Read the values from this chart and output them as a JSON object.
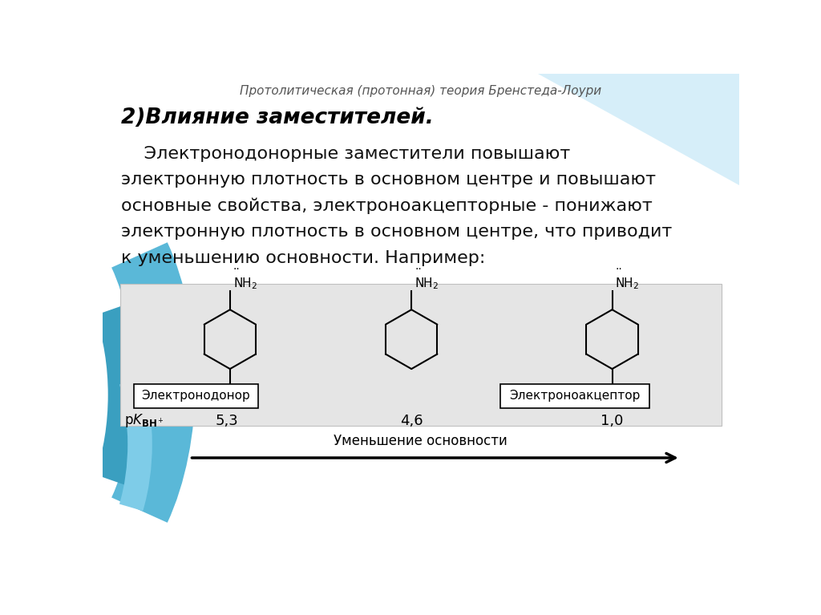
{
  "title": "Протолитическая (протонная) теория Бренстеда-Лоури",
  "heading": "2)Влияние заместителей.",
  "body_line1": "    Электронодонорные заместители повышают",
  "body_line2": "электронную плотность в основном центре и повышают",
  "body_line3": "основные свойства, электроноакцепторные - понижают",
  "body_line4": "электронную плотность в основном центре, что приводит",
  "body_line5": "к уменьшению основности. Например:",
  "label1": "Электронодонор",
  "label2": "Электроноакцептор",
  "pk1": "5,3",
  "pk2": "4,6",
  "pk3": "1,0",
  "arrow_label": "Уменьшение основности",
  "bg_white": "#ffffff",
  "bg_blue_light": "#b8dff0",
  "bg_blue_mid": "#7ec8e3",
  "bg_blue_dark": "#4ba8cc",
  "panel_bg": "#e5e5e5",
  "panel_edge": "#c0c0c0",
  "title_color": "#555555",
  "heading_color": "#000000",
  "body_color": "#111111"
}
